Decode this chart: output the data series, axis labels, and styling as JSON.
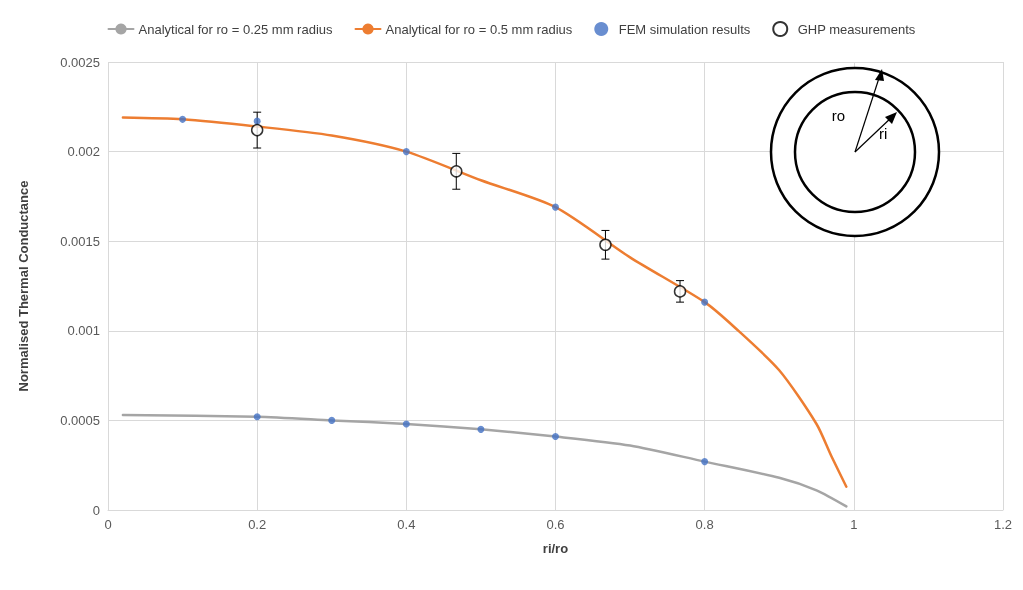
{
  "chart_data": {
    "type": "line",
    "xlabel": "ri/ro",
    "ylabel": "Normalised Thermal Conductance",
    "xlim": [
      0,
      1.2
    ],
    "xticks": [
      0,
      0.2,
      0.4,
      0.6,
      0.8,
      1,
      1.2
    ],
    "ylim": [
      0,
      0.0025
    ],
    "yticks": [
      0,
      0.0005,
      0.001,
      0.0015,
      0.002,
      0.0025
    ],
    "grid": true,
    "legend": "top",
    "annotations": [
      "ro",
      "ri"
    ],
    "series": [
      {
        "name": "Analytical for ro = 0.25 mm radius",
        "color": "#a5a5a5",
        "marker": "none",
        "x": [
          0.02,
          0.2,
          0.3,
          0.4,
          0.5,
          0.6,
          0.7,
          0.8,
          0.9,
          0.95,
          0.99
        ],
        "values": [
          0.00053,
          0.00052,
          0.0005,
          0.00048,
          0.00045,
          0.00041,
          0.00036,
          0.00027,
          0.00018,
          0.00011,
          2e-05
        ]
      },
      {
        "name": "Analytical for ro = 0.5 mm radius",
        "color": "#ed7d31",
        "marker": "none",
        "x": [
          0.02,
          0.1,
          0.2,
          0.3,
          0.4,
          0.5,
          0.6,
          0.7,
          0.8,
          0.84,
          0.9,
          0.95,
          0.97,
          0.99
        ],
        "values": [
          0.00219,
          0.00218,
          0.00214,
          0.00209,
          0.002,
          0.00184,
          0.00169,
          0.00141,
          0.00116,
          0.00102,
          0.00078,
          0.00048,
          0.0003,
          0.00013
        ]
      },
      {
        "name": "FEM simulation results",
        "type": "scatter",
        "color": "#4472c4",
        "marker": "circle",
        "x": [
          0.1,
          0.2,
          0.4,
          0.6,
          0.8,
          0.2,
          0.3,
          0.4,
          0.5,
          0.6,
          0.8
        ],
        "values": [
          0.00218,
          0.00217,
          0.002,
          0.00169,
          0.00116,
          0.00052,
          0.0005,
          0.00048,
          0.00045,
          0.00041,
          0.00027
        ]
      },
      {
        "name": "GHP measurements",
        "type": "scatter",
        "color": "#000000",
        "marker": "circle",
        "x": [
          0.2,
          0.467,
          0.667,
          0.767
        ],
        "values": [
          0.00212,
          0.00189,
          0.00148,
          0.00122
        ],
        "errors": [
          0.0001,
          0.0001,
          8e-05,
          6e-05
        ]
      }
    ]
  }
}
